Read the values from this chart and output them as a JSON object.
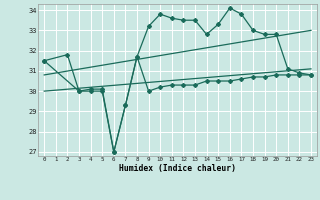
{
  "xlabel": "Humidex (Indice chaleur)",
  "bg_color": "#cbe8e3",
  "grid_color": "#ffffff",
  "line_color": "#1a6b5a",
  "curve1_x": [
    0,
    2,
    3,
    4,
    5,
    6,
    7,
    8,
    9,
    10,
    11,
    12,
    13,
    14,
    15,
    16,
    17,
    18,
    19,
    20,
    21,
    22,
    23
  ],
  "curve1_y": [
    31.5,
    31.8,
    30.0,
    30.1,
    30.1,
    27.0,
    29.3,
    31.7,
    33.2,
    33.8,
    33.6,
    33.5,
    33.5,
    32.8,
    33.3,
    34.1,
    33.8,
    33.0,
    32.8,
    32.8,
    31.1,
    30.9,
    30.8
  ],
  "curve2_x": [
    0,
    3,
    4,
    5,
    6,
    7,
    8,
    9,
    10,
    11,
    12,
    13,
    14,
    15,
    16,
    17,
    18,
    19,
    20,
    21,
    22,
    23
  ],
  "curve2_y": [
    31.5,
    30.0,
    30.0,
    30.0,
    27.0,
    29.3,
    31.7,
    30.0,
    30.2,
    30.3,
    30.3,
    30.3,
    30.5,
    30.5,
    30.5,
    30.6,
    30.7,
    30.7,
    30.8,
    30.8,
    30.8,
    30.8
  ],
  "line1_x": [
    0,
    23
  ],
  "line1_y": [
    30.8,
    33.0
  ],
  "line2_x": [
    0,
    23
  ],
  "line2_y": [
    30.0,
    31.1
  ],
  "ylim": [
    26.8,
    34.3
  ],
  "xlim": [
    -0.5,
    23.5
  ],
  "yticks": [
    27,
    28,
    29,
    30,
    31,
    32,
    33,
    34
  ],
  "xticks": [
    0,
    1,
    2,
    3,
    4,
    5,
    6,
    7,
    8,
    9,
    10,
    11,
    12,
    13,
    14,
    15,
    16,
    17,
    18,
    19,
    20,
    21,
    22,
    23
  ]
}
